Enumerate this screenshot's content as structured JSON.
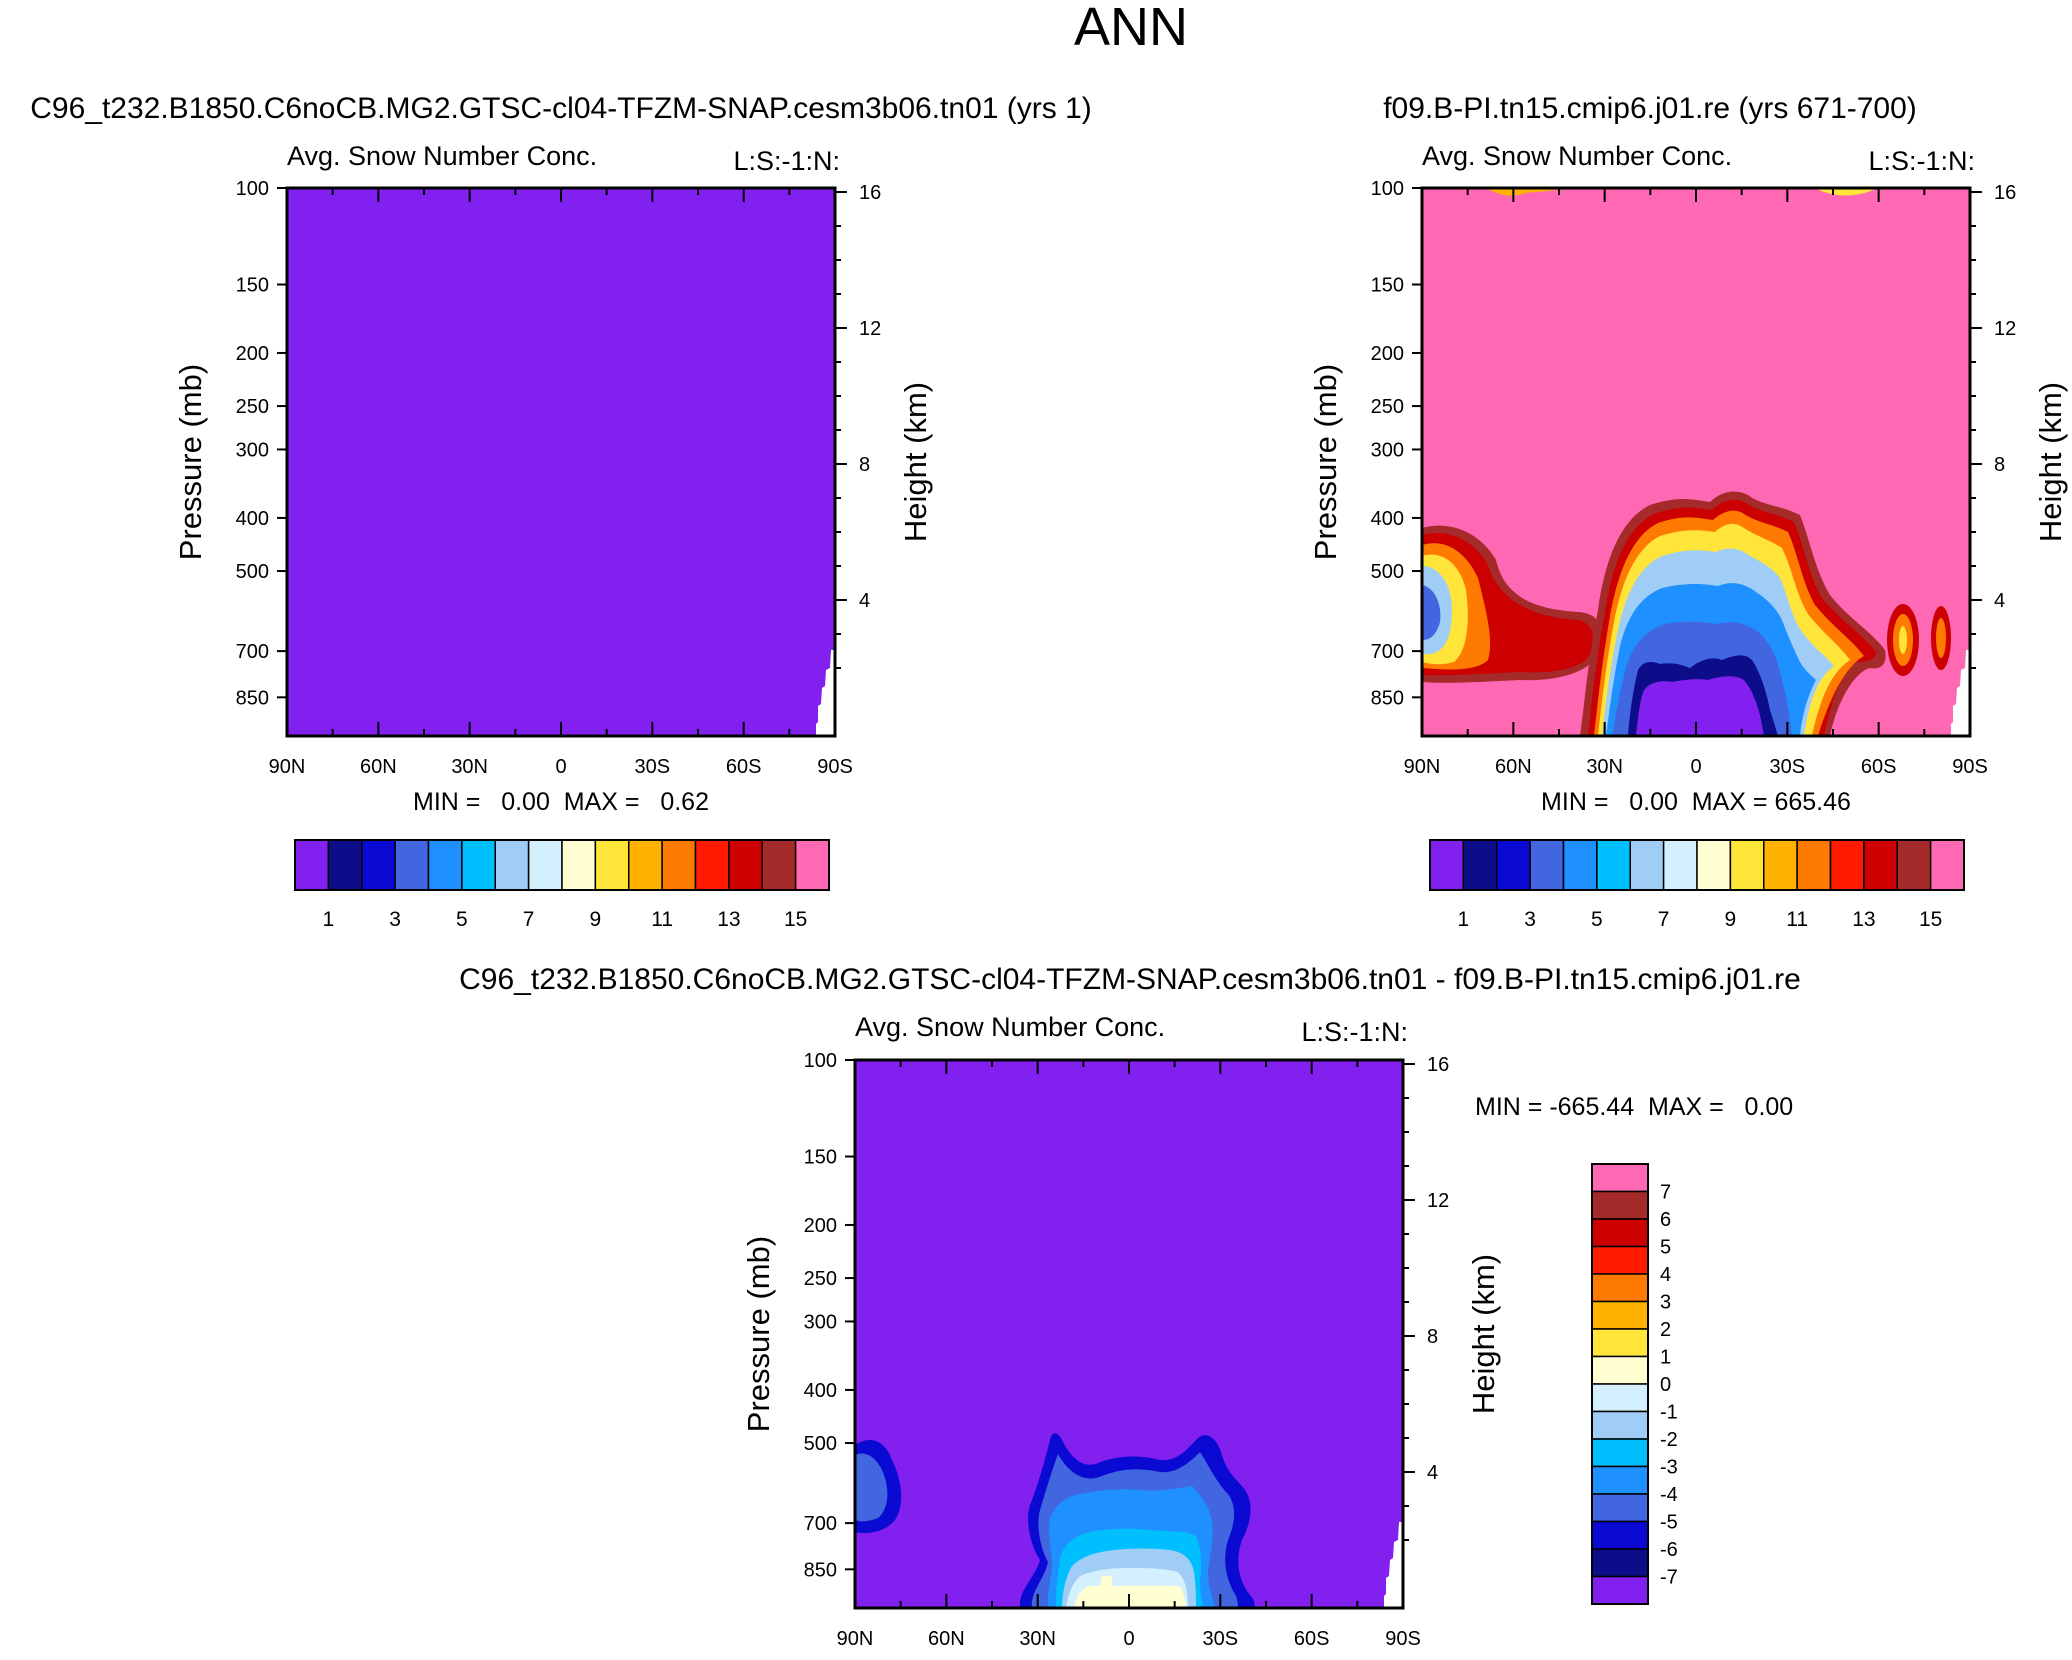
{
  "page": {
    "title": "ANN"
  },
  "colors": {
    "fill_purple": "#8220ef",
    "fill_pink": "#ff69b4",
    "levels": [
      "#8220ef",
      "#0d0d8a",
      "#0a0ad2",
      "#4166e0",
      "#1e90ff",
      "#00bfff",
      "#a0cdf5",
      "#d4f0ff",
      "#ffffd2",
      "#ffe43a",
      "#ffb200",
      "#ff7a00",
      "#ff1a00",
      "#cc0000",
      "#a52a2a",
      "#ff69b4"
    ]
  },
  "chart_data": [
    {
      "type": "contour",
      "case_title": "C96_t232.B1850.C6noCB.MG2.GTSC-cl04-TFZM-SNAP.cesm3b06.tn01 (yrs 1)",
      "panel_title": "Avg. Snow Number Conc.",
      "units_label": "L:S:-1:N:",
      "ylabel": "Pressure (mb)",
      "ylabel_right": "Height (km)",
      "x_ticks": [
        "90N",
        "60N",
        "30N",
        "0",
        "30S",
        "60S",
        "90S"
      ],
      "y_ticks": [
        "100",
        "150",
        "200",
        "250",
        "300",
        "400",
        "500",
        "700",
        "850"
      ],
      "height_ticks": [
        "16",
        "12",
        "8",
        "4"
      ],
      "ylim": [
        1000,
        100
      ],
      "stats": "MIN =   0.00  MAX =   0.62",
      "min": 0.0,
      "max": 0.62,
      "colorbar": {
        "orientation": "horizontal",
        "labels": [
          "1",
          "3",
          "5",
          "7",
          "9",
          "11",
          "13",
          "15"
        ]
      },
      "field_description": "uniform lowest level (purple) everywhere"
    },
    {
      "type": "contour",
      "case_title": "f09.B-PI.tn15.cmip6.j01.re (yrs 671-700)",
      "panel_title": "Avg. Snow Number Conc.",
      "units_label": "L:S:-1:N:",
      "ylabel": "Pressure (mb)",
      "ylabel_right": "Height (km)",
      "x_ticks": [
        "90N",
        "60N",
        "30N",
        "0",
        "30S",
        "60S",
        "90S"
      ],
      "y_ticks": [
        "100",
        "150",
        "200",
        "250",
        "300",
        "400",
        "500",
        "700",
        "850"
      ],
      "height_ticks": [
        "16",
        "12",
        "8",
        "4"
      ],
      "ylim": [
        1000,
        100
      ],
      "stats": "MIN =   0.00  MAX = 665.46",
      "min": 0.0,
      "max": 665.46,
      "colorbar": {
        "orientation": "horizontal",
        "labels": [
          "1",
          "3",
          "5",
          "7",
          "9",
          "11",
          "13",
          "15"
        ]
      }
    },
    {
      "type": "contour",
      "case_title": "C96_t232.B1850.C6noCB.MG2.GTSC-cl04-TFZM-SNAP.cesm3b06.tn01 - f09.B-PI.tn15.cmip6.j01.re",
      "panel_title": "Avg. Snow Number Conc.",
      "units_label": "L:S:-1:N:",
      "ylabel": "Pressure (mb)",
      "ylabel_right": "Height (km)",
      "x_ticks": [
        "90N",
        "60N",
        "30N",
        "0",
        "30S",
        "60S",
        "90S"
      ],
      "y_ticks": [
        "100",
        "150",
        "200",
        "250",
        "300",
        "400",
        "500",
        "700",
        "850"
      ],
      "height_ticks": [
        "16",
        "12",
        "8",
        "4"
      ],
      "ylim": [
        1000,
        100
      ],
      "stats": "MIN = -665.44  MAX =   0.00",
      "min": -665.44,
      "max": 0.0,
      "colorbar": {
        "orientation": "vertical",
        "labels": [
          "7",
          "6",
          "5",
          "4",
          "3",
          "2",
          "1",
          "0",
          "-1",
          "-2",
          "-3",
          "-4",
          "-5",
          "-6",
          "-7"
        ]
      }
    }
  ]
}
